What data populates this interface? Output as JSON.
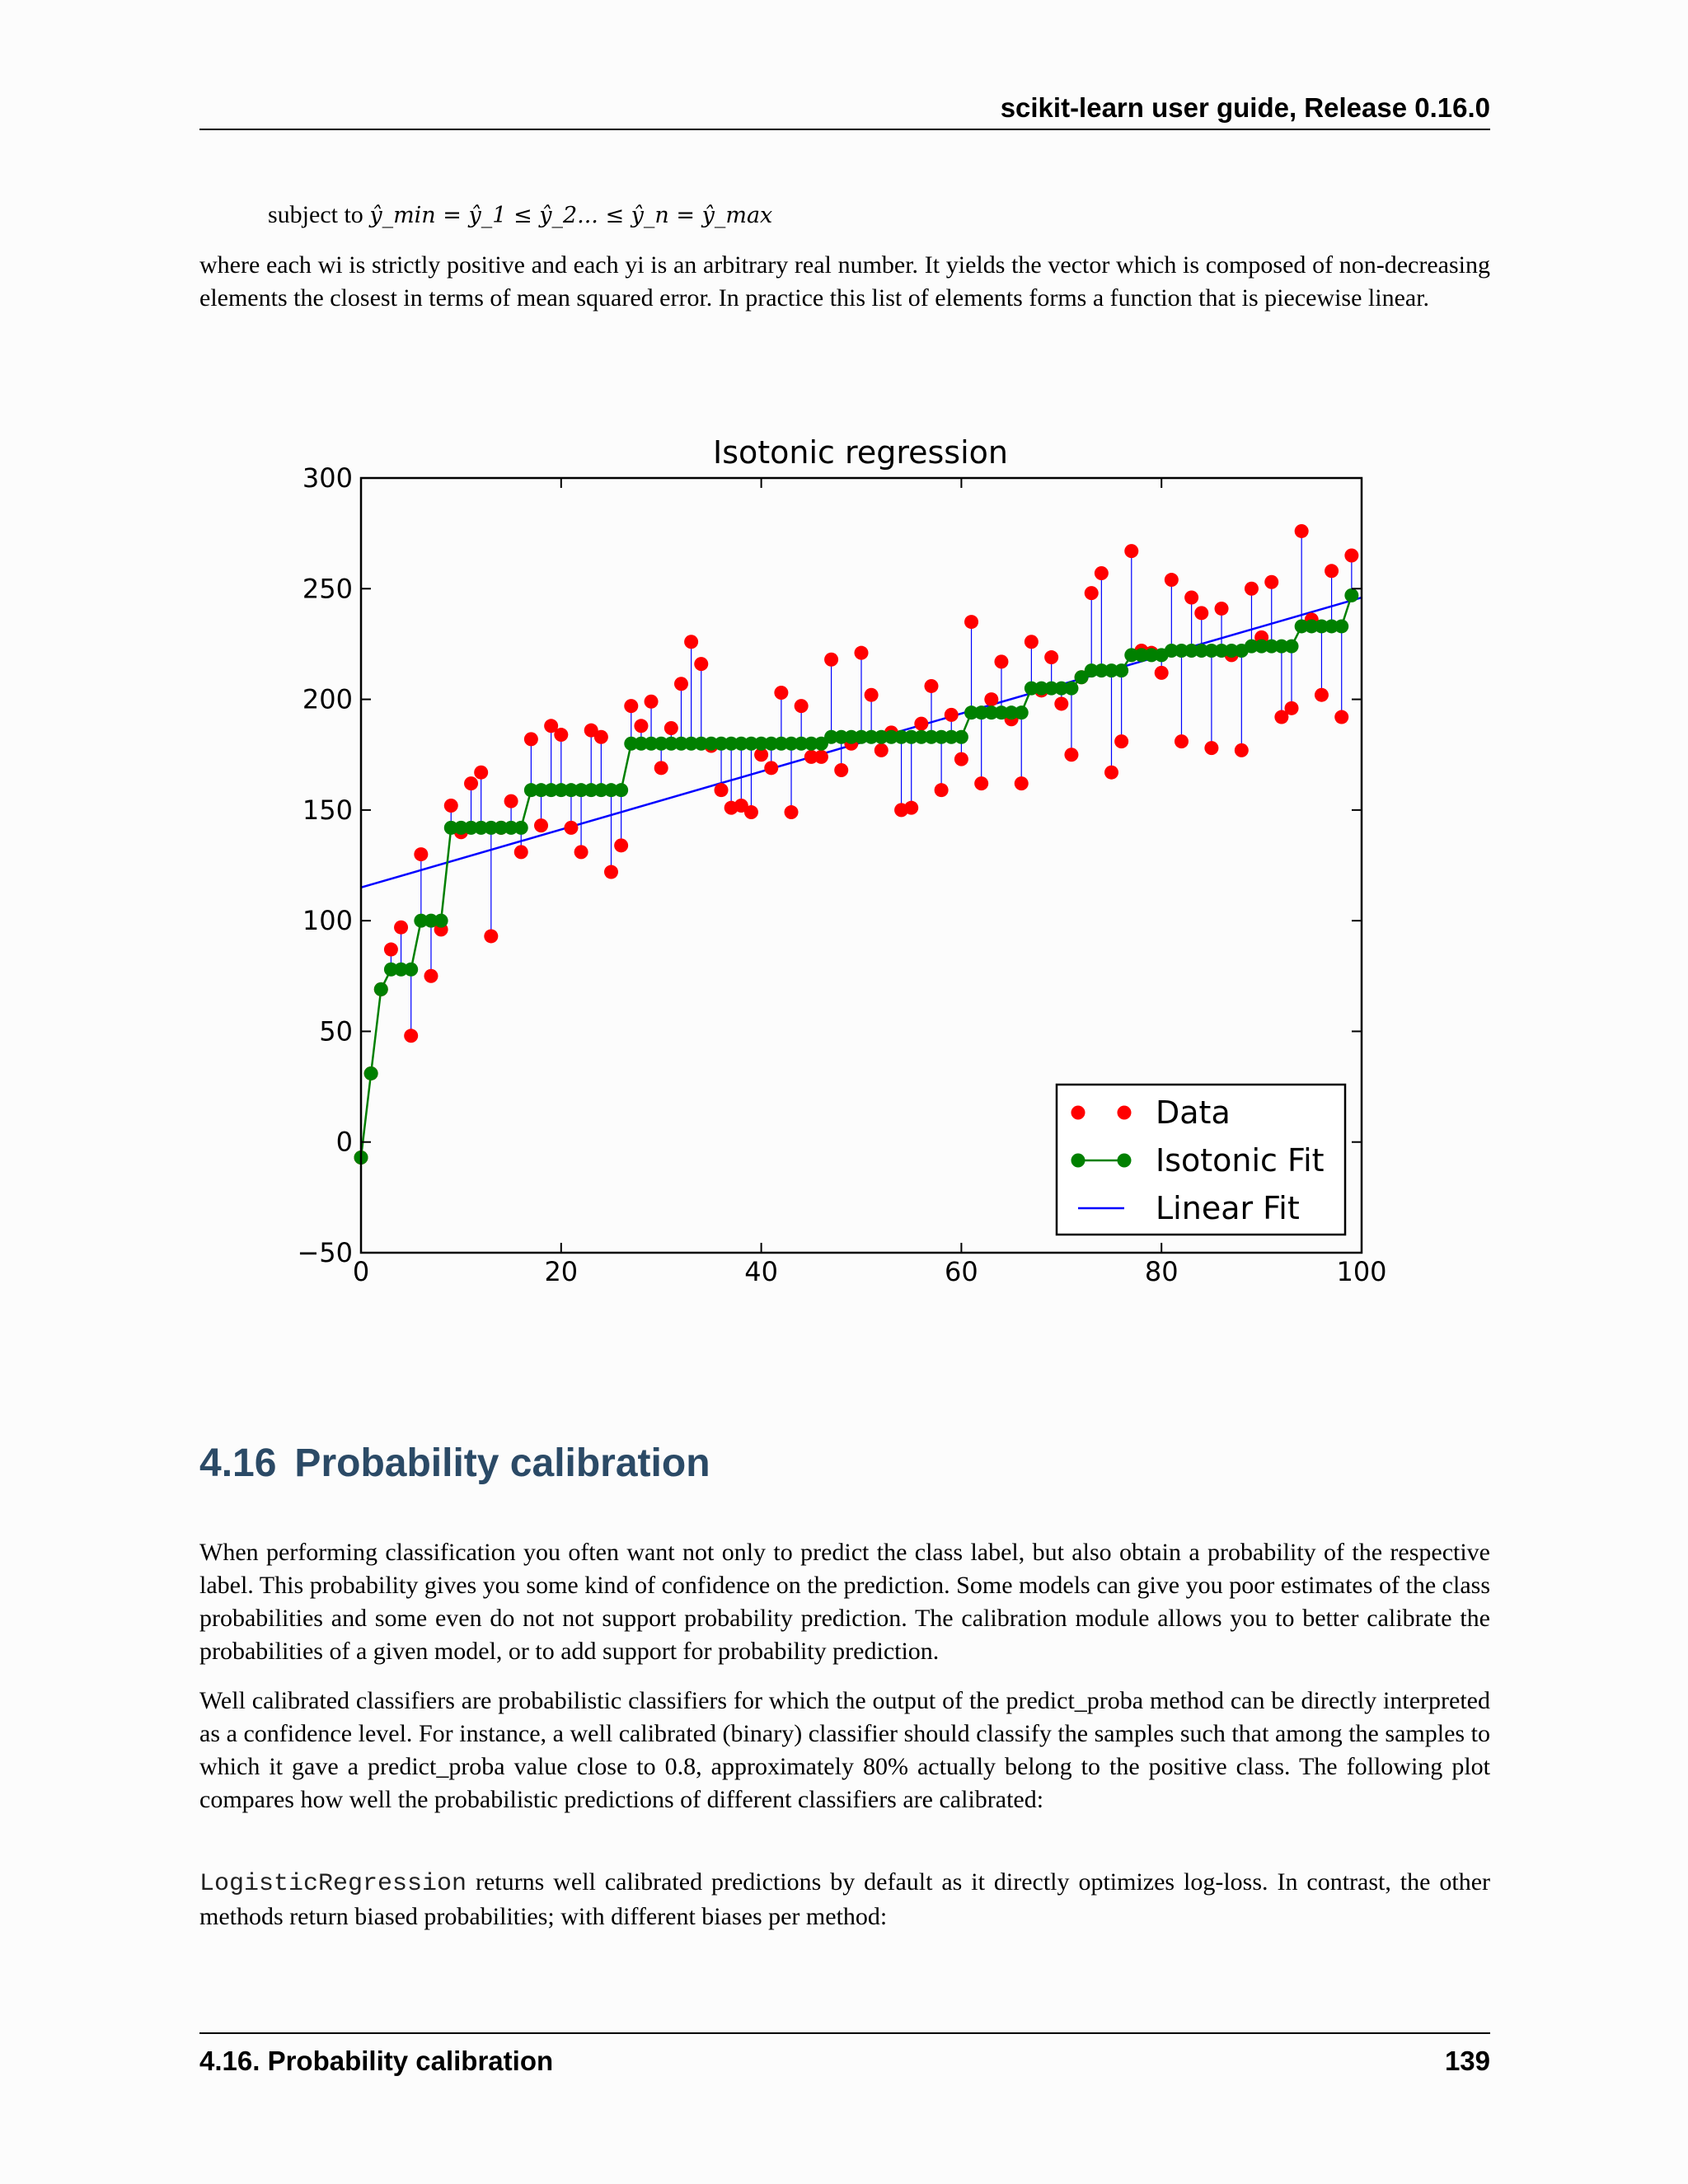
{
  "header": {
    "title": "scikit-learn user guide, Release 0.16.0"
  },
  "equation": {
    "prefix": "subject to",
    "math": "ŷ_min = ŷ_1 ≤ ŷ_2... ≤ ŷ_n = ŷ_max"
  },
  "para1": "where each wi is strictly positive and each yi is an arbitrary real number. It yields the vector which is composed of non-decreasing elements the closest in terms of mean squared error. In practice this list of elements forms a function that is piecewise linear.",
  "section": {
    "number": "4.16",
    "title": "Probability calibration"
  },
  "para2": "When performing classification you often want not only to predict the class label, but also obtain a probability of the respective label. This probability gives you some kind of confidence on the prediction. Some models can give you poor estimates of the class probabilities and some even do not not support probability prediction. The calibration module allows you to better calibrate the probabilities of a given model, or to add support for probability prediction.",
  "para3": "Well calibrated classifiers are probabilistic classifiers for which the output of the predict_proba method can be directly interpreted as a confidence level. For instance, a well calibrated (binary) classifier should classify the samples such that among the samples to which it gave a predict_proba value close to 0.8, approximately 80% actually belong to the positive class. The following plot compares how well the probabilistic predictions of different classifiers are calibrated:",
  "para4": {
    "code": "LogisticRegression",
    "text": " returns well calibrated predictions by default as it directly optimizes log-loss. In contrast, the other methods return biased probabilities; with different biases per method:"
  },
  "footer": {
    "left": "4.16. Probability calibration",
    "right": "139"
  },
  "chart_data": {
    "type": "scatter",
    "title": "Isotonic regression",
    "xlim": [
      0,
      100
    ],
    "ylim": [
      -50,
      300
    ],
    "xticks": [
      "0",
      "20",
      "40",
      "60",
      "80",
      "100"
    ],
    "yticks": [
      "300",
      "250",
      "200",
      "150",
      "100",
      "50",
      "0",
      "−50"
    ],
    "grid": false,
    "legend": {
      "placement": "lower-right",
      "entries": [
        "Data",
        "Isotonic Fit",
        "Linear Fit"
      ]
    },
    "colors": {
      "data": "#ff0000",
      "isotonic": "#008000",
      "linear": "#0000ff"
    },
    "x": [
      0,
      1,
      2,
      3,
      4,
      5,
      6,
      7,
      8,
      9,
      10,
      11,
      12,
      13,
      14,
      15,
      16,
      17,
      18,
      19,
      20,
      21,
      22,
      23,
      24,
      25,
      26,
      27,
      28,
      29,
      30,
      31,
      32,
      33,
      34,
      35,
      36,
      37,
      38,
      39,
      40,
      41,
      42,
      43,
      44,
      45,
      46,
      47,
      48,
      49,
      50,
      51,
      52,
      53,
      54,
      55,
      56,
      57,
      58,
      59,
      60,
      61,
      62,
      63,
      64,
      65,
      66,
      67,
      68,
      69,
      70,
      71,
      72,
      73,
      74,
      75,
      76,
      77,
      78,
      79,
      80,
      81,
      82,
      83,
      84,
      85,
      86,
      87,
      88,
      89,
      90,
      91,
      92,
      93,
      94,
      95,
      96,
      97,
      98,
      99
    ],
    "series": [
      {
        "name": "Data",
        "values": [
          -7,
          31,
          69,
          87,
          97,
          48,
          130,
          75,
          96,
          152,
          140,
          162,
          167,
          93,
          142,
          154,
          131,
          182,
          143,
          188,
          184,
          142,
          131,
          186,
          183,
          122,
          134,
          197,
          188,
          199,
          169,
          187,
          207,
          226,
          216,
          179,
          159,
          151,
          152,
          149,
          175,
          169,
          203,
          149,
          197,
          174,
          174,
          218,
          168,
          180,
          221,
          202,
          177,
          185,
          150,
          151,
          189,
          206,
          159,
          193,
          173,
          235,
          162,
          200,
          217,
          191,
          162,
          226,
          204,
          219,
          198,
          175,
          210,
          248,
          257,
          167,
          181,
          267,
          222,
          221,
          212,
          254,
          181,
          246,
          239,
          178,
          241,
          220,
          177,
          250,
          228,
          253,
          192,
          196,
          276,
          236,
          202,
          258,
          192,
          265
        ]
      },
      {
        "name": "Isotonic Fit",
        "values": [
          -7,
          31,
          69,
          78,
          78,
          78,
          100,
          100,
          100,
          142,
          142,
          142,
          142,
          142,
          142,
          142,
          142,
          159,
          159,
          159,
          159,
          159,
          159,
          159,
          159,
          159,
          159,
          180,
          180,
          180,
          180,
          180,
          180,
          180,
          180,
          180,
          180,
          180,
          180,
          180,
          180,
          180,
          180,
          180,
          180,
          180,
          180,
          183,
          183,
          183,
          183,
          183,
          183,
          183,
          183,
          183,
          183,
          183,
          183,
          183,
          183,
          194,
          194,
          194,
          194,
          194,
          194,
          205,
          205,
          205,
          205,
          205,
          210,
          213,
          213,
          213,
          213,
          220,
          220,
          220,
          220,
          222,
          222,
          222,
          222,
          222,
          222,
          222,
          222,
          224,
          224,
          224,
          224,
          224,
          233,
          233,
          233,
          233,
          233,
          247
        ]
      },
      {
        "name": "Linear Fit",
        "values": [
          115,
          246
        ]
      }
    ]
  }
}
